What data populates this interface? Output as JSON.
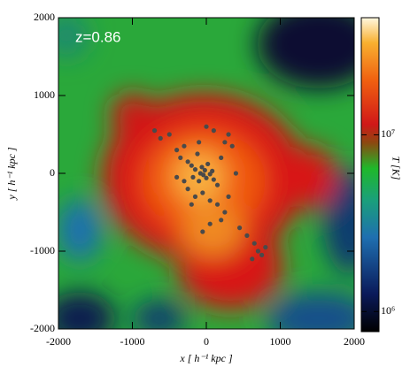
{
  "chart_data": {
    "type": "scatter",
    "annotation": "z=0.86",
    "xlabel": "x [ h⁻¹ kpc ]",
    "ylabel": "y [ h⁻¹ kpc ]",
    "xlim": [
      -2000,
      2000
    ],
    "ylim": [
      -2000,
      2000
    ],
    "xticks": [
      -2000,
      -1000,
      0,
      1000,
      2000
    ],
    "yticks": [
      -2000,
      -1000,
      0,
      1000,
      2000
    ],
    "series": [
      {
        "color": "#4a4a4a",
        "x": [
          -700,
          -620,
          -500,
          -400,
          -350,
          -300,
          -250,
          -200,
          -180,
          -150,
          -120,
          -100,
          -80,
          -60,
          -40,
          -20,
          0,
          20,
          50,
          80,
          100,
          150,
          200,
          250,
          300,
          350,
          -250,
          -150,
          -50,
          50,
          150,
          250,
          -300,
          -100,
          100,
          0,
          -200,
          300,
          450,
          550,
          650,
          700,
          750,
          800,
          620,
          50,
          -50,
          200,
          400,
          -400
        ],
        "values": [
          550,
          450,
          500,
          300,
          200,
          350,
          150,
          100,
          -50,
          50,
          250,
          -100,
          0,
          80,
          -20,
          40,
          -60,
          120,
          -10,
          30,
          -80,
          -150,
          200,
          400,
          500,
          350,
          -200,
          -300,
          -250,
          -350,
          -400,
          -500,
          -100,
          400,
          550,
          600,
          -400,
          -300,
          -700,
          -800,
          -900,
          -1000,
          -1050,
          -950,
          -1100,
          -650,
          -750,
          -600,
          0,
          -50
        ]
      }
    ],
    "colorbar": {
      "label": "T [K]",
      "log_scale": true,
      "clim": [
        770000,
        46000000
      ],
      "ticks": [
        {
          "value": 1000000,
          "label": "10⁶"
        },
        {
          "value": 10000000,
          "label": "10⁷"
        }
      ]
    }
  }
}
